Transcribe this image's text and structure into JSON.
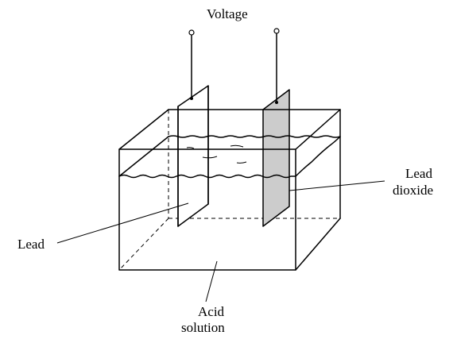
{
  "labels": {
    "voltage": "Voltage",
    "lead": "Lead",
    "lead_dioxide_line1": "Lead",
    "lead_dioxide_line2": "dioxide",
    "acid_line1": "Acid",
    "acid_line2": "solution"
  },
  "colors": {
    "ink": "#000000",
    "lead_dioxide_fill": "#cccccc",
    "lead_plate_fill": "#ffffff"
  }
}
